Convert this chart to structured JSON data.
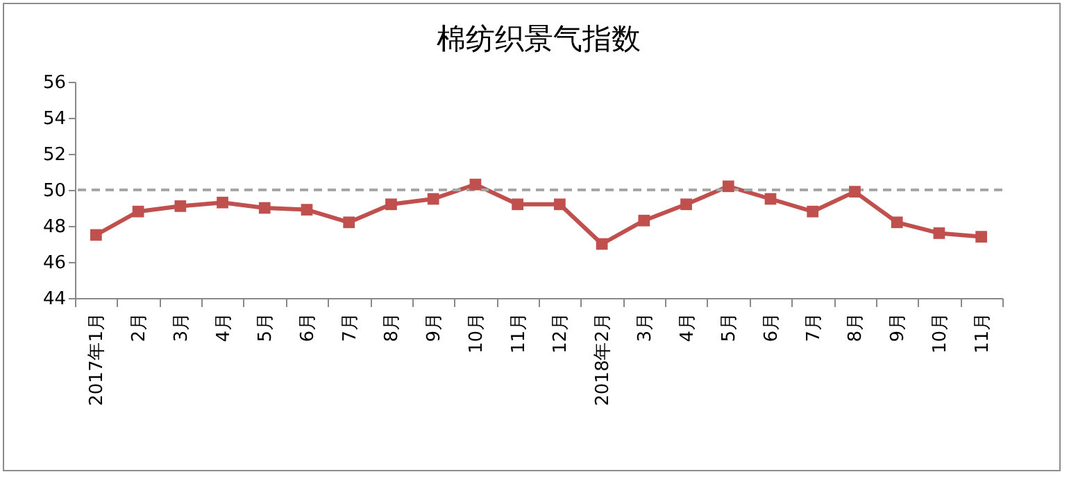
{
  "chart_data": {
    "type": "line",
    "title": "棉纺织景气指数",
    "categories": [
      "2017年1月",
      "2月",
      "3月",
      "4月",
      "5月",
      "6月",
      "7月",
      "8月",
      "9月",
      "10月",
      "11月",
      "12月",
      "2018年2月",
      "3月",
      "4月",
      "5月",
      "6月",
      "7月",
      "8月",
      "9月",
      "10月",
      "11月"
    ],
    "series": [
      {
        "color": "#c0504d",
        "values": [
          47.5,
          48.8,
          49.1,
          49.3,
          49.0,
          48.9,
          48.2,
          49.2,
          49.5,
          50.3,
          49.2,
          49.2,
          47.0,
          48.3,
          49.2,
          50.2,
          49.5,
          48.8,
          49.9,
          48.2,
          47.6,
          47.4
        ]
      }
    ],
    "ylim": [
      44,
      56
    ],
    "yticks": [
      44,
      46,
      48,
      50,
      52,
      54,
      56
    ],
    "grid": false,
    "legend": false,
    "marker": "square",
    "line_style": "solid",
    "ref_lines": [
      {
        "axis": "y",
        "value": 50,
        "color": "#a6a6a6",
        "line_style": "dashed"
      }
    ]
  }
}
